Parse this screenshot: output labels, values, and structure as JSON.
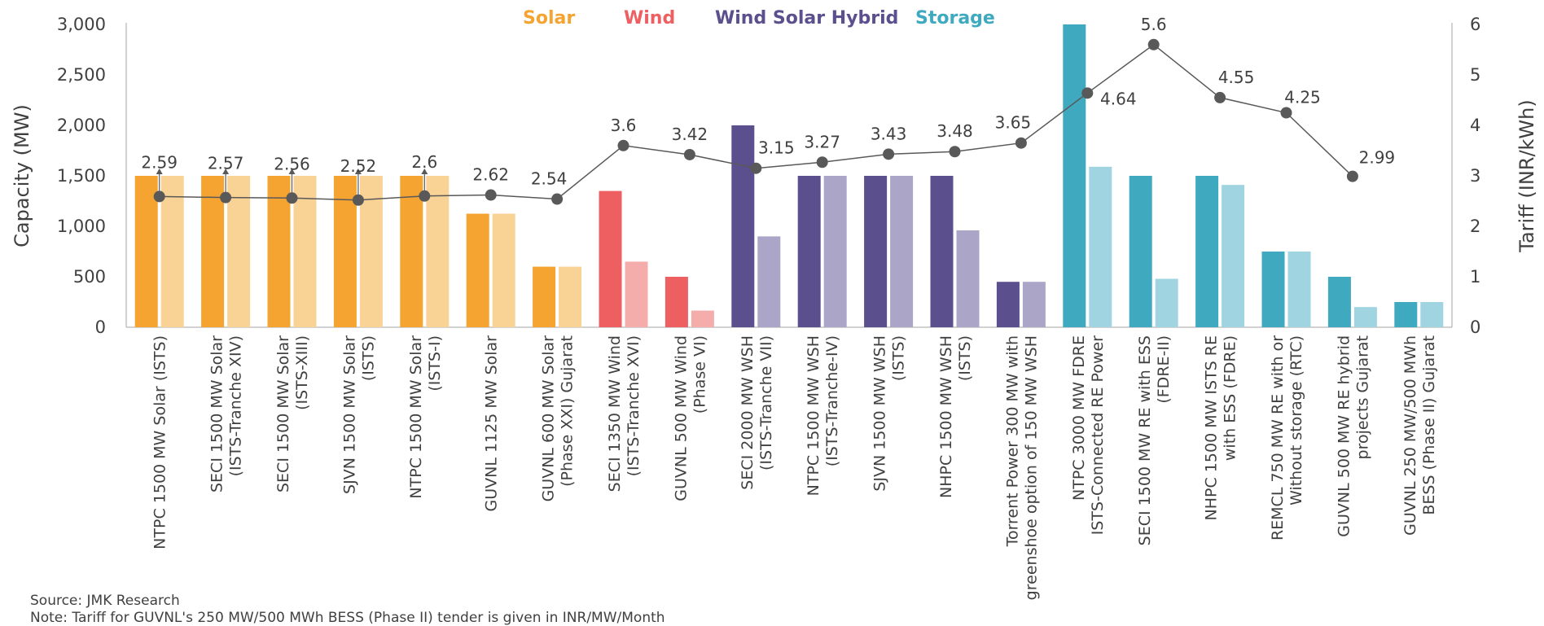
{
  "chart_data": {
    "type": "bar",
    "title": "",
    "ylabel": "Capacity (MW)",
    "y2label": "Tariff (INR/kWh)",
    "ylim": [
      0,
      3000
    ],
    "y2lim": [
      0,
      6
    ],
    "yticks": [
      "0",
      "500",
      "1,000",
      "1,500",
      "2,000",
      "2,500",
      "3,000"
    ],
    "y2ticks": [
      "0",
      "1",
      "2",
      "3",
      "4",
      "5",
      "6"
    ],
    "legend_position": "top-center",
    "legend": [
      {
        "label": "Solar",
        "color": "#f5a331"
      },
      {
        "label": "Wind",
        "color": "#ee5f61"
      },
      {
        "label": "Wind Solar Hybrid",
        "color": "#5b4f8e"
      },
      {
        "label": "Storage",
        "color": "#3fa9bf"
      }
    ],
    "categories": [
      [
        "NTPC 1500 MW Solar (ISTS)"
      ],
      [
        "SECI 1500 MW Solar",
        "(ISTS-Tranche XIV)"
      ],
      [
        "SECI 1500 MW Solar",
        "(ISTS-XIII)"
      ],
      [
        "SJVN 1500 MW Solar",
        "(ISTS)"
      ],
      [
        "NTPC 1500 MW Solar",
        "(ISTS-I)"
      ],
      [
        "GUVNL 1125 MW Solar"
      ],
      [
        "GUVNL 600 MW Solar",
        "(Phase XXI) Gujarat"
      ],
      [
        "SECI 1350 MW Wind",
        "(ISTS-Tranche XVI)"
      ],
      [
        "GUVNL 500 MW Wind",
        "(Phase VI)"
      ],
      [
        "SECI 2000 MW WSH",
        "(ISTS-Tranche VII)"
      ],
      [
        "NTPC 1500 MW WSH",
        "(ISTS-Tranche-IV)"
      ],
      [
        "SJVN 1500 MW WSH",
        "(ISTS)"
      ],
      [
        "NHPC 1500 MW WSH",
        "(ISTS)"
      ],
      [
        "Torrent Power 300 MW with",
        "greenshoe option of 150 MW WSH"
      ],
      [
        "NTPC 3000 MW FDRE",
        "ISTS-Connected RE Power"
      ],
      [
        "SECI 1500 MW RE with ESS",
        "(FDRE-II)"
      ],
      [
        "NHPC 1500 MW ISTS RE",
        "with ESS (FDRE)"
      ],
      [
        "REMCL 750 MW RE with or",
        "Without storage (RTC)"
      ],
      [
        "GUVNL 500 MW RE hybrid",
        "projects Gujarat"
      ],
      [
        "GUVNL 250 MW/500 MWh",
        "BESS (Phase II) Gujarat"
      ]
    ],
    "group": [
      "Solar",
      "Solar",
      "Solar",
      "Solar",
      "Solar",
      "Solar",
      "Solar",
      "Wind",
      "Wind",
      "Wind Solar Hybrid",
      "Wind Solar Hybrid",
      "Wind Solar Hybrid",
      "Wind Solar Hybrid",
      "Wind Solar Hybrid",
      "Storage",
      "Storage",
      "Storage",
      "Storage",
      "Storage",
      "Storage"
    ],
    "series": [
      {
        "kind": "bar",
        "values": [
          1500,
          1500,
          1500,
          1500,
          1500,
          1125,
          600,
          1350,
          500,
          2000,
          1500,
          1500,
          1500,
          450,
          3000,
          1500,
          1500,
          750,
          500,
          250
        ]
      },
      {
        "kind": "bar",
        "values": [
          1500,
          1500,
          1500,
          1500,
          1500,
          1125,
          600,
          650,
          165,
          900,
          1500,
          1500,
          960,
          450,
          1590,
          480,
          1410,
          750,
          200,
          250
        ]
      },
      {
        "kind": "line",
        "axis": "right",
        "values": [
          2.59,
          2.57,
          2.56,
          2.52,
          2.6,
          2.62,
          2.54,
          3.6,
          3.42,
          3.15,
          3.27,
          3.43,
          3.48,
          3.65,
          4.64,
          5.6,
          4.55,
          4.25,
          2.99,
          null
        ],
        "labels": [
          "2.59",
          "2.57",
          "2.56",
          "2.52",
          "2.6",
          "2.62",
          "2.54",
          "3.6",
          "3.42",
          "3.15",
          "3.27",
          "3.43",
          "3.48",
          "3.65",
          "4.64",
          "5.6",
          "4.55",
          "4.25",
          "2.99",
          ""
        ]
      }
    ],
    "colors": {
      "Solar": [
        "#f5a331",
        "#f9d296"
      ],
      "Wind": [
        "#ee5f61",
        "#f4adab"
      ],
      "Wind Solar Hybrid": [
        "#5b4f8e",
        "#aba5c8"
      ],
      "Storage": [
        "#3fa9bf",
        "#9fd4e0"
      ],
      "line": "#595959",
      "axis": "#a6a6a6",
      "legend_text": [
        "#f5a331",
        "#ee5f61",
        "#5b4f8e",
        "#3fa9bf"
      ]
    }
  },
  "footnotes": {
    "source": "Source: JMK Research",
    "note": "Note: Tariff for GUVNL's 250 MW/500 MWh BESS (Phase II) tender is given in INR/MW/Month"
  }
}
